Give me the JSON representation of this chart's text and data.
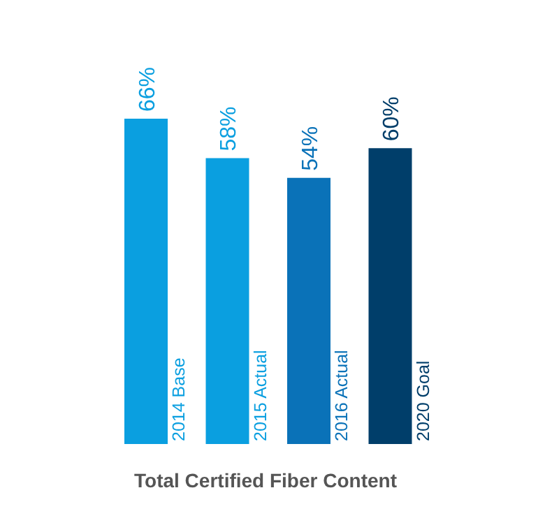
{
  "chart_data": {
    "type": "bar",
    "title": "Total Certified Fiber Content",
    "categories": [
      "2014 Base",
      "2015 Actual",
      "2016 Actual",
      "2020 Goal"
    ],
    "values": [
      66,
      58,
      54,
      60
    ],
    "colors": [
      "#0a9fe0",
      "#0a9fe0",
      "#0a72b8",
      "#003e6a"
    ],
    "value_labels": [
      "66%",
      "58%",
      "54%",
      "60%"
    ],
    "grid": false,
    "legend": false,
    "tick_labels": false
  }
}
